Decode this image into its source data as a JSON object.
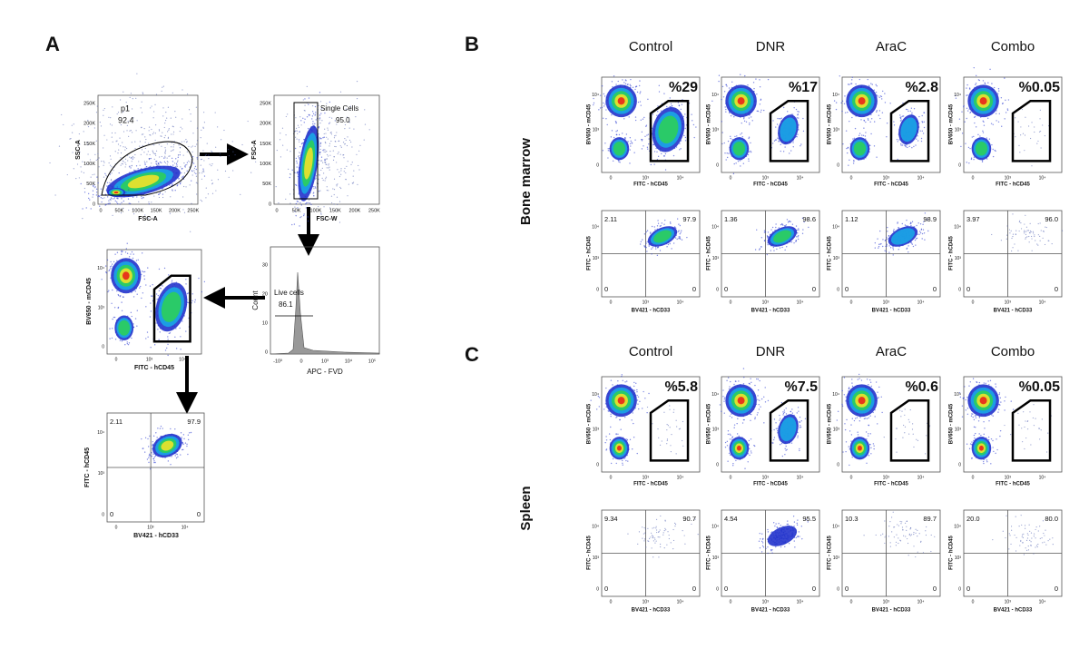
{
  "panel_labels": [
    "A",
    "B",
    "C"
  ],
  "panel_a": {
    "scatter": {
      "y_label": "SSC-A",
      "x_label": "FSC-A",
      "gate": "p1",
      "gate_value": "92.4",
      "ticks": [
        "0",
        "50K",
        "100K",
        "150K",
        "200K",
        "250K"
      ]
    },
    "singlets": {
      "y_label": "FSC-A",
      "x_label": "FSC-W",
      "gate": "Single Cells",
      "gate_value": "95.0",
      "ticks": [
        "0",
        "50K",
        "100K",
        "150K",
        "200K",
        "250K"
      ]
    },
    "live": {
      "y_label": "Count",
      "x_label": "APC - FVD",
      "gate": "Live cells",
      "gate_value": "86.1",
      "yticks": [
        "0",
        "10",
        "20",
        "30"
      ],
      "xticks": [
        "-10³",
        "0",
        "10³",
        "10⁴",
        "10⁵"
      ]
    },
    "human": {
      "y_label": "BV650 - mCD45",
      "x_label": "FITC - hCD45",
      "ticks": [
        "0",
        "10³",
        "10⁴"
      ]
    },
    "quadrant": {
      "y_label": "FITC - hCD45",
      "x_label": "BV421 - hCD33",
      "ticks": [
        "0",
        "10³",
        "10⁴"
      ],
      "values": [
        "2.11",
        "97.9",
        "0",
        "0"
      ]
    }
  },
  "panel_b": {
    "tissue": "Bone marrow",
    "columns": [
      "Control",
      "DNR",
      "AraC",
      "Combo"
    ],
    "gate_axes": {
      "y_label": "BV650 - mCD45",
      "x_label": "FITC - hCD45"
    },
    "quad_axes": {
      "y_label": "FITC - hCD45",
      "x_label": "BV421 - hCD33"
    },
    "ticks": [
      "0",
      "10³",
      "10⁴"
    ],
    "gates": [
      "%29",
      "%17",
      "%2.8",
      "%0.05"
    ],
    "quadrants": [
      [
        "2.11",
        "97.9",
        "0",
        "0"
      ],
      [
        "1.36",
        "98.6",
        "0",
        "0"
      ],
      [
        "1.12",
        "98.9",
        "0",
        "0"
      ],
      [
        "3.97",
        "96.0",
        "0",
        "0"
      ]
    ]
  },
  "panel_c": {
    "tissue": "Spleen",
    "columns": [
      "Control",
      "DNR",
      "AraC",
      "Combo"
    ],
    "gate_axes": {
      "y_label": "BV650 - mCD45",
      "x_label": "FITC - hCD45"
    },
    "quad_axes": {
      "y_label": "FITC - hCD45",
      "x_label": "BV421 - hCD33"
    },
    "ticks": [
      "0",
      "10³",
      "10⁴"
    ],
    "gates": [
      "%5.8",
      "%7.5",
      "%0.6",
      "%0.05"
    ],
    "quadrants": [
      [
        "9.34",
        "90.7",
        "0",
        "0"
      ],
      [
        "4.54",
        "95.5",
        "0",
        "0"
      ],
      [
        "10.3",
        "89.7",
        "0",
        "0"
      ],
      [
        "20.0",
        "80.0",
        "0",
        "0"
      ]
    ]
  }
}
